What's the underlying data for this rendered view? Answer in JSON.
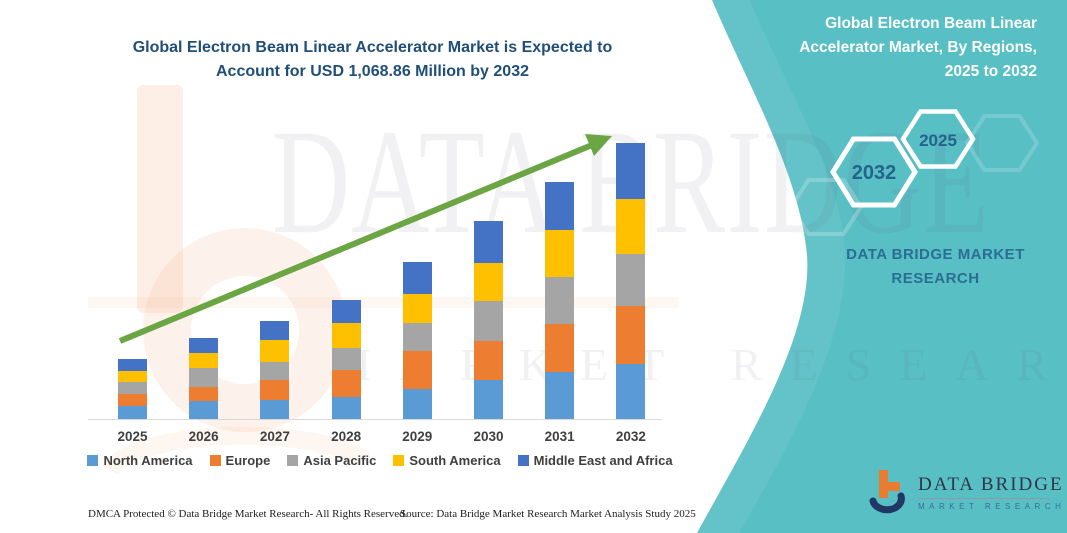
{
  "main_title": {
    "line1": "Global Electron Beam Linear Accelerator Market is Expected to",
    "line2": "Account for USD 1,068.86 Million by 2032"
  },
  "right_panel": {
    "background_color": "#58BFC5",
    "title_line1": "Global Electron Beam Linear",
    "title_line2": "Accelerator Market, By Regions,",
    "title_line3": "2025 to 2032",
    "hexagons": [
      {
        "label": "2032"
      },
      {
        "label": "2025"
      }
    ],
    "brand_line1": "DATA BRIDGE MARKET",
    "brand_line2": "RESEARCH"
  },
  "watermark": {
    "line1": "DATA BRIDGE",
    "line2": "MARKET RESEARCH"
  },
  "logo": {
    "name": "DATA BRIDGE",
    "subtitle": "MARKET RESEARCH"
  },
  "footer": {
    "dmca": "DMCA Protected © Data Bridge Market Research-  All Rights Reserved.",
    "source": "Source: Data Bridge Market Research  Market Analysis Study 2025"
  },
  "chart_data": {
    "type": "bar",
    "subtype": "stacked",
    "value_unit": "USD Million",
    "categories": [
      "2025",
      "2026",
      "2027",
      "2028",
      "2029",
      "2030",
      "2031",
      "2032"
    ],
    "series": [
      {
        "name": "North America",
        "color": "#5B9BD5",
        "values": [
          50,
          70,
          74,
          85,
          116,
          151,
          182,
          213
        ]
      },
      {
        "name": "Europe",
        "color": "#ED7D31",
        "values": [
          46,
          54,
          77,
          105,
          147,
          151,
          186,
          225
        ]
      },
      {
        "name": "Asia Pacific",
        "color": "#A5A5A5",
        "values": [
          46,
          74,
          70,
          85,
          108,
          155,
          182,
          201
        ]
      },
      {
        "name": "South America",
        "color": "#FFC000",
        "values": [
          43,
          58,
          85,
          97,
          112,
          147,
          182,
          213
        ]
      },
      {
        "name": "Middle East and Africa",
        "color": "#4472C4",
        "values": [
          46,
          58,
          74,
          89,
          124,
          163,
          186,
          217
        ]
      }
    ],
    "labeled_total_2032": 1068.86,
    "ylim": [
      0,
      1100
    ],
    "grid": false,
    "legend_position": "bottom",
    "trend_arrow_color": "#6CA544",
    "axis_line_color": "#D9D9D9"
  }
}
